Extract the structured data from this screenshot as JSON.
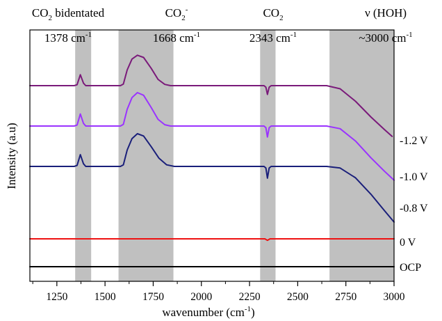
{
  "chart_data": {
    "type": "line",
    "title": "",
    "xlabel": "wavenumber (cm",
    "xlabel_superscript": "-1",
    "xlabel_suffix": ")",
    "ylabel": "Intensity (a.u)",
    "xlim": [
      1110,
      3000
    ],
    "x_ticks": [
      1250,
      1500,
      1750,
      2000,
      2250,
      2500,
      2750,
      3000
    ],
    "x_tick_labels": [
      "1250",
      "1500",
      "1750",
      "2000",
      "2250",
      "2500",
      "2750",
      "3000"
    ],
    "y_axis_values_shown": false,
    "colors": {
      "band": "#c0c0c0",
      "purple": "#7a1a7a",
      "violet": "#9a33ff",
      "navy": "#1a1f7a",
      "red": "#ee1111",
      "black": "#000000"
    },
    "shaded_bands": [
      {
        "x_range": [
          1345,
          1428
        ],
        "label_top": "CO",
        "label_top_sub": "2",
        "label_top_suffix": " bidentated",
        "label_bottom": "1378 cm",
        "label_bottom_sup": "-1"
      },
      {
        "x_range": [
          1570,
          1855
        ],
        "label_top": "CO",
        "label_top_sub": "2",
        "label_top_sup": "-",
        "label_bottom": "1668 cm",
        "label_bottom_sup": "-1"
      },
      {
        "x_range": [
          2305,
          2385
        ],
        "label_top": "CO",
        "label_top_sub": "2",
        "label_bottom": "2343 cm",
        "label_bottom_sup": "-1"
      },
      {
        "x_range": [
          2665,
          3000
        ],
        "label_top": "ν (HOH)",
        "label_bottom": "~3000 cm",
        "label_bottom_sup": "-1"
      }
    ],
    "series": [
      {
        "name": "-1.2 V",
        "color": "#7a1a7a",
        "points": [
          [
            1110,
            0
          ],
          [
            1340,
            0
          ],
          [
            1355,
            0.03
          ],
          [
            1372,
            0.35
          ],
          [
            1388,
            0.08
          ],
          [
            1400,
            0
          ],
          [
            1580,
            0
          ],
          [
            1595,
            0.05
          ],
          [
            1615,
            0.5
          ],
          [
            1640,
            0.85
          ],
          [
            1668,
            0.97
          ],
          [
            1700,
            0.9
          ],
          [
            1740,
            0.55
          ],
          [
            1775,
            0.2
          ],
          [
            1810,
            0.04
          ],
          [
            1840,
            0
          ],
          [
            2325,
            0
          ],
          [
            2335,
            -0.05
          ],
          [
            2343,
            -0.28
          ],
          [
            2352,
            -0.05
          ],
          [
            2362,
            0
          ],
          [
            2650,
            0
          ],
          [
            2720,
            -0.1
          ],
          [
            2800,
            -0.5
          ],
          [
            2880,
            -1.0
          ],
          [
            2950,
            -1.4
          ],
          [
            2990,
            -1.62
          ]
        ]
      },
      {
        "name": "-1.0 V",
        "color": "#9a33ff",
        "points": [
          [
            1110,
            0
          ],
          [
            1340,
            0
          ],
          [
            1355,
            0.03
          ],
          [
            1372,
            0.36
          ],
          [
            1388,
            0.08
          ],
          [
            1400,
            0
          ],
          [
            1580,
            0
          ],
          [
            1595,
            0.05
          ],
          [
            1615,
            0.5
          ],
          [
            1640,
            0.85
          ],
          [
            1668,
            1.0
          ],
          [
            1700,
            0.92
          ],
          [
            1740,
            0.55
          ],
          [
            1775,
            0.2
          ],
          [
            1810,
            0.04
          ],
          [
            1840,
            0
          ],
          [
            2325,
            0
          ],
          [
            2335,
            -0.05
          ],
          [
            2343,
            -0.33
          ],
          [
            2352,
            -0.05
          ],
          [
            2362,
            0
          ],
          [
            2650,
            0
          ],
          [
            2720,
            -0.08
          ],
          [
            2800,
            -0.45
          ],
          [
            2880,
            -0.95
          ],
          [
            2950,
            -1.35
          ],
          [
            3000,
            -1.62
          ]
        ]
      },
      {
        "name": "-0.8 V",
        "color": "#1a1f7a",
        "points": [
          [
            1110,
            0
          ],
          [
            1340,
            0
          ],
          [
            1355,
            0.03
          ],
          [
            1372,
            0.36
          ],
          [
            1388,
            0.08
          ],
          [
            1400,
            0
          ],
          [
            1580,
            0
          ],
          [
            1595,
            0.05
          ],
          [
            1615,
            0.5
          ],
          [
            1640,
            0.85
          ],
          [
            1668,
            1.0
          ],
          [
            1700,
            0.93
          ],
          [
            1740,
            0.6
          ],
          [
            1780,
            0.25
          ],
          [
            1820,
            0.05
          ],
          [
            1860,
            0
          ],
          [
            2325,
            0
          ],
          [
            2335,
            -0.05
          ],
          [
            2343,
            -0.36
          ],
          [
            2352,
            -0.05
          ],
          [
            2362,
            0
          ],
          [
            2650,
            0
          ],
          [
            2720,
            -0.05
          ],
          [
            2800,
            -0.35
          ],
          [
            2880,
            -0.85
          ],
          [
            2950,
            -1.35
          ],
          [
            3000,
            -1.7
          ]
        ]
      },
      {
        "name": "0 V",
        "color": "#ee1111",
        "points": [
          [
            1110,
            0
          ],
          [
            2330,
            0
          ],
          [
            2343,
            -0.18
          ],
          [
            2356,
            0
          ],
          [
            3000,
            0
          ]
        ]
      },
      {
        "name": "OCP",
        "color": "#000000",
        "points": [
          [
            1110,
            0
          ],
          [
            3000,
            0
          ]
        ]
      }
    ],
    "right_labels": [
      "-1.2 V",
      "-1.0 V",
      "-0.8 V",
      "0 V",
      "OCP"
    ]
  }
}
